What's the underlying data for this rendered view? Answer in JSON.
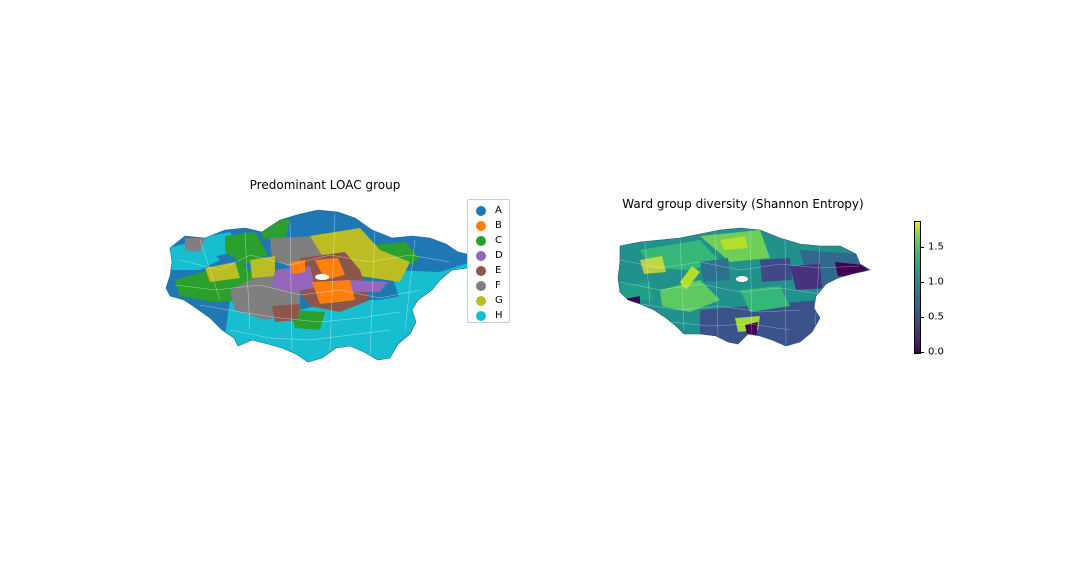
{
  "left_map": {
    "title": "Predominant LOAC group",
    "legend": [
      {
        "label": "A",
        "color": "#1f77b4"
      },
      {
        "label": "B",
        "color": "#ff7f0e"
      },
      {
        "label": "C",
        "color": "#2ca02c"
      },
      {
        "label": "D",
        "color": "#9467bd"
      },
      {
        "label": "E",
        "color": "#8c564b"
      },
      {
        "label": "F",
        "color": "#7f7f7f"
      },
      {
        "label": "G",
        "color": "#bcbd22"
      },
      {
        "label": "H",
        "color": "#17becf"
      }
    ]
  },
  "right_map": {
    "title": "Ward group diversity (Shannon Entropy)",
    "colorbar": {
      "min": 0.0,
      "max": 1.85,
      "ticks": [
        "0.0",
        "0.5",
        "1.0",
        "1.5"
      ],
      "colormap": "viridis"
    }
  }
}
